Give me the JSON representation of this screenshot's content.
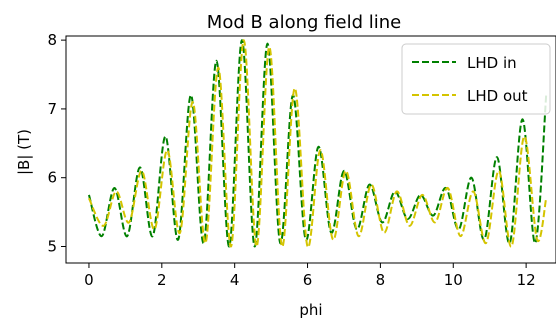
{
  "chart_data": {
    "type": "line",
    "title": "Mod B along field line",
    "xlabel": "phi",
    "ylabel": "|B| (T)",
    "xlim": [
      -0.63,
      12.82
    ],
    "ylim": [
      4.76,
      8.06
    ],
    "xticks": [
      0,
      2,
      4,
      6,
      8,
      10,
      12
    ],
    "yticks": [
      5,
      6,
      7,
      8
    ],
    "legend_position": "top-right",
    "series": [
      {
        "name": "LHD in",
        "color": "#008000",
        "dash": "dashed",
        "x": [
          0.0,
          0.35,
          0.7,
          1.05,
          1.4,
          1.75,
          2.1,
          2.45,
          2.8,
          3.15,
          3.5,
          3.85,
          4.2,
          4.55,
          4.9,
          5.25,
          5.6,
          5.95,
          6.3,
          6.65,
          7.0,
          7.35,
          7.7,
          8.05,
          8.4,
          8.75,
          9.1,
          9.45,
          9.8,
          10.15,
          10.5,
          10.85,
          11.2,
          11.55,
          11.9,
          12.25,
          12.55
        ],
        "y": [
          5.75,
          5.15,
          5.85,
          5.15,
          6.15,
          5.15,
          6.6,
          5.1,
          7.2,
          5.05,
          7.7,
          5.0,
          8.0,
          5.0,
          7.95,
          5.05,
          7.2,
          5.1,
          6.45,
          5.2,
          6.1,
          5.25,
          5.9,
          5.35,
          5.8,
          5.4,
          5.75,
          5.45,
          5.85,
          5.25,
          6.0,
          5.1,
          6.3,
          5.05,
          6.85,
          5.05,
          7.2
        ]
      },
      {
        "name": "LHD out",
        "color": "#d4c400",
        "dash": "dashed",
        "x": [
          0.0,
          0.4,
          0.75,
          1.1,
          1.45,
          1.8,
          2.15,
          2.5,
          2.85,
          3.2,
          3.55,
          3.9,
          4.25,
          4.6,
          4.95,
          5.3,
          5.65,
          6.0,
          6.35,
          6.7,
          7.05,
          7.4,
          7.75,
          8.1,
          8.45,
          8.8,
          9.15,
          9.5,
          9.85,
          10.2,
          10.55,
          10.9,
          11.25,
          11.6,
          11.95,
          12.3,
          12.55
        ],
        "y": [
          5.7,
          5.3,
          5.8,
          5.35,
          6.1,
          5.25,
          6.4,
          5.2,
          7.1,
          5.05,
          7.6,
          5.0,
          8.0,
          5.0,
          7.9,
          5.0,
          7.3,
          5.0,
          6.4,
          5.1,
          6.1,
          5.15,
          5.9,
          5.2,
          5.8,
          5.3,
          5.75,
          5.35,
          5.85,
          5.15,
          5.8,
          5.05,
          6.1,
          5.0,
          6.6,
          5.1,
          5.7
        ]
      }
    ]
  }
}
